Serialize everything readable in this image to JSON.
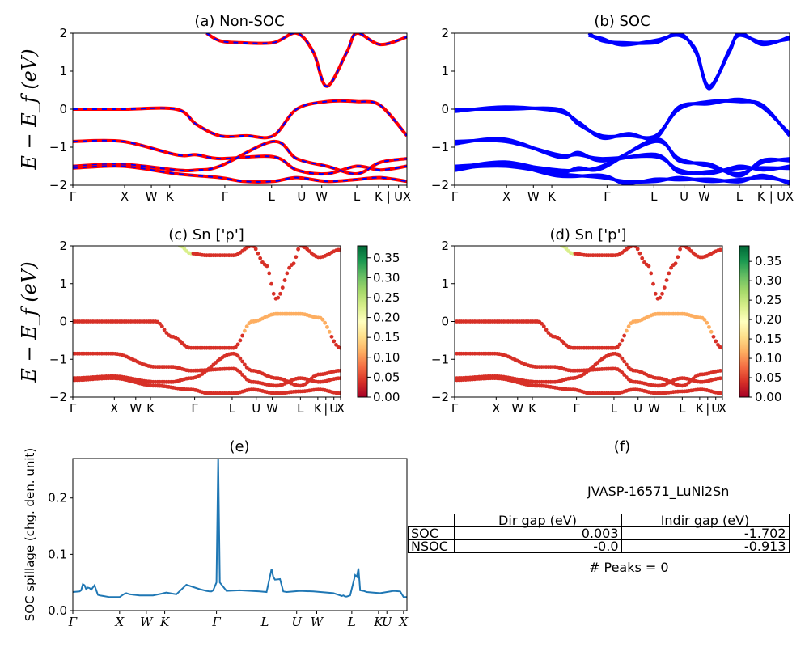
{
  "figure": {
    "panel_a_title": "(a) Non-SOC",
    "panel_b_title": "(b) SOC",
    "panel_c_title": "(c)  Sn ['p']",
    "panel_d_title": "(d) Sn ['p']",
    "panel_e_title": "(e)",
    "panel_f_title": "(f)",
    "y_label_band": "E − E_f (eV)",
    "y_label_spillage": "SOC spillage (chg. den. unit)",
    "k_labels": [
      "Γ",
      "X",
      "W",
      "K",
      "Γ",
      "L",
      "U",
      "W",
      "L",
      "K",
      "|",
      "U",
      "X"
    ],
    "k_labels_e": [
      "Γ",
      "X",
      "W",
      "K",
      "Γ",
      "L",
      "U",
      "W",
      "L",
      "K",
      "U",
      "X"
    ],
    "band_yticks": [
      "2",
      "1",
      "0",
      "−1",
      "−2"
    ],
    "cbar_c_ticks": [
      "0.35",
      "0.30",
      "0.25",
      "0.20",
      "0.15",
      "0.10",
      "0.05",
      "0.00"
    ],
    "cbar_d_ticks": [
      "0.35",
      "0.30",
      "0.25",
      "0.20",
      "0.15",
      "0.10",
      "0.05",
      "0.00"
    ],
    "spill_yticks": [
      "0.2",
      "0.1",
      "0.0"
    ]
  },
  "panel_f": {
    "material_id": "JVASP-16571_LuNi2Sn",
    "col_dir": "Dir gap (eV)",
    "col_indir": "Indir gap (eV)",
    "row_soc": "SOC",
    "row_nsoc": "NSOC",
    "soc_dir": "0.003",
    "soc_indir": "-1.702",
    "nsoc_dir": "-0.0",
    "nsoc_indir": "-0.913",
    "peaks_text": "# Peaks = 0"
  },
  "colors": {
    "nonsoc_band": "#ff0000",
    "nonsoc_dash": "#0000ff",
    "soc_band": "#0000ff",
    "spillage_line": "#1f77b4",
    "cmap": [
      "#a50026",
      "#d73027",
      "#f46d43",
      "#fdae61",
      "#fee08b",
      "#ffffbf",
      "#d9ef8b",
      "#a6d96a",
      "#66bd63",
      "#1a9850",
      "#006837"
    ]
  },
  "chart_data": [
    {
      "type": "line",
      "title": "(a) Non-SOC",
      "ylabel": "E − E_f (eV)",
      "ylim": [
        -2,
        2
      ],
      "xticks": [
        "Γ",
        "X",
        "W",
        "K",
        "Γ",
        "L",
        "U",
        "W",
        "L",
        "K",
        "|",
        "U",
        "X"
      ],
      "note": "band structure, approximate",
      "bands": [
        {
          "x": [
            0,
            0.15,
            0.31,
            0.37,
            0.44,
            0.52,
            0.6,
            0.67,
            0.76,
            0.85,
            0.92,
            1.0
          ],
          "y": [
            0.0,
            0.0,
            0.0,
            -0.4,
            -0.7,
            -0.7,
            -0.7,
            0.0,
            0.2,
            0.2,
            0.1,
            -0.7
          ]
        },
        {
          "x": [
            0,
            0.15,
            0.31,
            0.37,
            0.44,
            0.6,
            0.67,
            0.76,
            0.85,
            0.92,
            1.0
          ],
          "y": [
            -0.85,
            -0.85,
            -1.2,
            -1.2,
            -1.3,
            -1.25,
            -1.6,
            -1.7,
            -1.5,
            -1.6,
            -1.5
          ]
        },
        {
          "x": [
            0,
            0.15,
            0.31,
            0.37,
            0.44,
            0.6,
            0.67,
            0.76,
            0.85,
            0.92,
            1.0
          ],
          "y": [
            -1.5,
            -1.45,
            -1.6,
            -1.6,
            -1.5,
            -0.85,
            -1.3,
            -1.5,
            -1.7,
            -1.4,
            -1.3
          ]
        },
        {
          "x": [
            0,
            0.15,
            0.31,
            0.44,
            0.51,
            0.6,
            0.67,
            0.76,
            0.85,
            0.92,
            1.0
          ],
          "y": [
            -1.55,
            -1.5,
            -1.7,
            -1.8,
            -1.9,
            -1.9,
            -1.8,
            -1.9,
            -1.85,
            -1.8,
            -1.9
          ]
        },
        {
          "x": [
            0.4,
            0.44,
            0.5,
            0.6,
            0.67,
            0.72,
            0.76,
            0.82,
            0.85,
            0.92,
            1.0
          ],
          "y": [
            2.0,
            1.8,
            1.75,
            1.75,
            2.0,
            1.5,
            0.6,
            1.5,
            2.0,
            1.7,
            1.9
          ]
        }
      ]
    },
    {
      "type": "line",
      "title": "(b) SOC",
      "ylim": [
        -2,
        2
      ],
      "xticks": [
        "Γ",
        "X",
        "W",
        "K",
        "Γ",
        "L",
        "U",
        "W",
        "L",
        "K",
        "|",
        "U",
        "X"
      ],
      "note": "band structure with spin-orbit coupling, approximate"
    },
    {
      "type": "scatter",
      "title": "(c)  Sn ['p']",
      "ylim": [
        -2,
        2
      ],
      "colorbar_range": [
        0.0,
        0.38
      ],
      "note": "projected band weights, approximate"
    },
    {
      "type": "scatter",
      "title": "(d) Sn ['p']",
      "ylim": [
        -2,
        2
      ],
      "colorbar_range": [
        0.0,
        0.39
      ],
      "note": "projected band weights with SOC, approximate"
    },
    {
      "type": "line",
      "title": "(e)",
      "ylabel": "SOC spillage (chg. den. unit)",
      "ylim": [
        0,
        0.27
      ],
      "xticks": [
        "Γ",
        "X",
        "W",
        "K",
        "Γ",
        "L",
        "U",
        "W",
        "L",
        "K",
        "U",
        "X"
      ],
      "x": [
        0.0,
        0.02,
        0.025,
        0.03,
        0.035,
        0.04,
        0.045,
        0.05,
        0.055,
        0.065,
        0.075,
        0.08,
        0.09,
        0.11,
        0.14,
        0.155,
        0.16,
        0.17,
        0.2,
        0.24,
        0.265,
        0.28,
        0.3,
        0.31,
        0.34,
        0.38,
        0.4,
        0.41,
        0.415,
        0.42,
        0.43,
        0.435,
        0.44,
        0.46,
        0.5,
        0.56,
        0.58,
        0.595,
        0.6,
        0.605,
        0.62,
        0.63,
        0.64,
        0.68,
        0.72,
        0.78,
        0.8,
        0.805,
        0.81,
        0.815,
        0.82,
        0.825,
        0.83,
        0.845,
        0.85,
        0.855,
        0.86,
        0.87,
        0.88,
        0.9,
        0.92,
        0.96,
        0.98,
        0.99,
        1.0
      ],
      "y": [
        0.033,
        0.034,
        0.036,
        0.047,
        0.045,
        0.038,
        0.041,
        0.04,
        0.037,
        0.045,
        0.028,
        0.027,
        0.026,
        0.024,
        0.024,
        0.03,
        0.031,
        0.029,
        0.027,
        0.027,
        0.03,
        0.032,
        0.03,
        0.029,
        0.046,
        0.038,
        0.035,
        0.034,
        0.034,
        0.036,
        0.05,
        0.272,
        0.05,
        0.035,
        0.036,
        0.034,
        0.033,
        0.074,
        0.06,
        0.055,
        0.056,
        0.034,
        0.033,
        0.035,
        0.034,
        0.031,
        0.027,
        0.026,
        0.027,
        0.025,
        0.025,
        0.026,
        0.027,
        0.063,
        0.06,
        0.075,
        0.036,
        0.035,
        0.033,
        0.032,
        0.031,
        0.035,
        0.034,
        0.024,
        0.024
      ]
    },
    {
      "type": "table",
      "title": "(f)",
      "columns": [
        "",
        "Dir gap (eV)",
        "Indir gap (eV)"
      ],
      "rows": [
        [
          "SOC",
          "0.003",
          "-1.702"
        ],
        [
          "NSOC",
          "-0.0",
          "-0.913"
        ]
      ]
    }
  ]
}
